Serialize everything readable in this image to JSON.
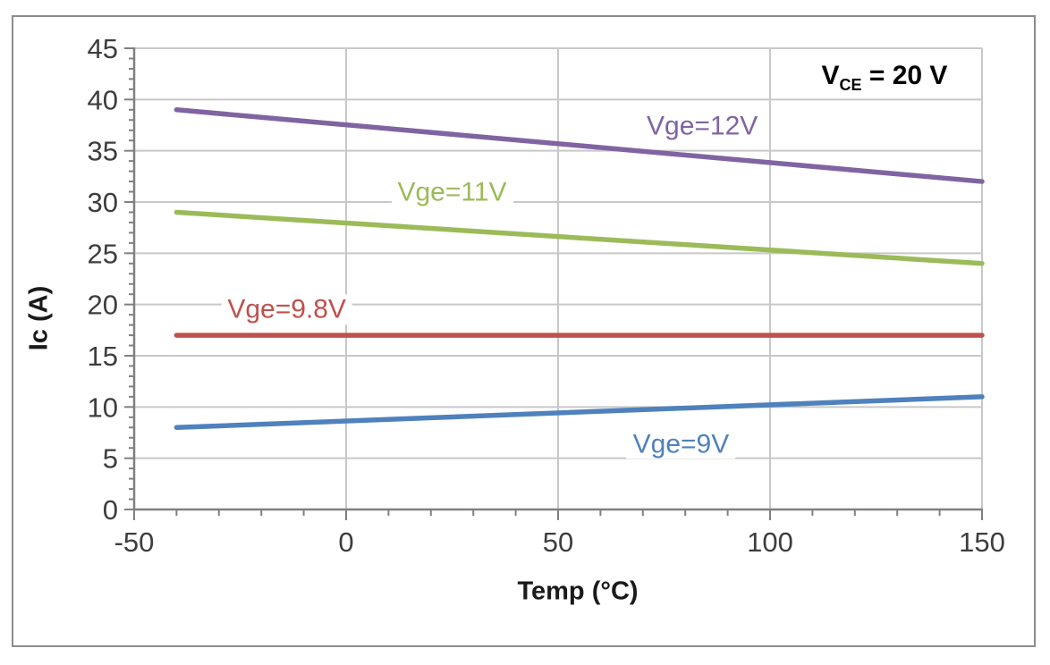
{
  "chart_data": {
    "type": "line",
    "title": "",
    "xlabel": "Temp (°C)",
    "ylabel": "Ic (A)",
    "xlim": [
      -50,
      150
    ],
    "ylim": [
      0,
      45
    ],
    "x_major_ticks": [
      "-50",
      "0",
      "50",
      "100",
      "150"
    ],
    "x_major_values": [
      -50,
      0,
      50,
      100,
      150
    ],
    "x_minor_step": 10,
    "y_major_ticks": [
      "0",
      "5",
      "10",
      "15",
      "20",
      "25",
      "30",
      "35",
      "40",
      "45"
    ],
    "y_major_values": [
      0,
      5,
      10,
      15,
      20,
      25,
      30,
      35,
      40,
      45
    ],
    "y_minor_step": 1,
    "grid": {
      "horizontal": true,
      "vertical_at": [
        0,
        50,
        100,
        150
      ],
      "top_border_at": 45
    },
    "legend_position": "inline-labels",
    "series": [
      {
        "name": "Vge=12V",
        "color": "#8064A2",
        "x": [
          -40,
          150
        ],
        "y": [
          39,
          32
        ],
        "label": {
          "x": 84,
          "y": 37.4
        }
      },
      {
        "name": "Vge=11V",
        "color": "#9BBB59",
        "x": [
          -40,
          150
        ],
        "y": [
          29,
          24
        ],
        "label": {
          "x": 25,
          "y": 31.0
        }
      },
      {
        "name": "Vge=9.8V",
        "color": "#C0504D",
        "x": [
          -40,
          150
        ],
        "y": [
          17,
          17
        ],
        "label": {
          "x": -14,
          "y": 19.5
        }
      },
      {
        "name": "Vge=9V",
        "color": "#4F81BD",
        "x": [
          -40,
          150
        ],
        "y": [
          8,
          11
        ],
        "label": {
          "x": 79,
          "y": 6.4
        }
      }
    ],
    "annotation": {
      "main": "V",
      "sub": "CE",
      "rest": " = 20 V",
      "x": 127,
      "y": 42.1
    },
    "colors": {
      "grid": "#c8c8c8",
      "axis": "#808080",
      "tick": "#808080",
      "tick_label": "#3d3d3d",
      "frame": "#8c8c8c",
      "background": "#ffffff"
    }
  }
}
